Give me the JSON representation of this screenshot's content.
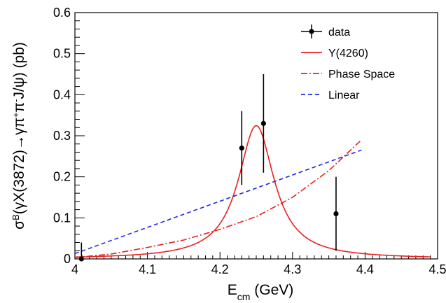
{
  "chart_data": {
    "type": "scatter",
    "xlim": [
      4.0,
      4.5
    ],
    "ylim": [
      0.0,
      0.6
    ],
    "xticks": [
      "4",
      "4.1",
      "4.2",
      "4.3",
      "4.4",
      "4.5"
    ],
    "yticks": [
      "0",
      "0.1",
      "0.2",
      "0.3",
      "0.4",
      "0.5",
      "0.6"
    ],
    "xlabel": "E_cm (GeV)",
    "xlabel_main": "E",
    "xlabel_sub": "cm",
    "xlabel_rest": " (GeV)",
    "ylabel": "σ^B(γX(3872)→γπ⁺π⁻J/ψ) (pb)",
    "ylabel_a": "σ",
    "ylabel_sup": "B",
    "ylabel_b": "(γX(3872)→γπ",
    "ylabel_plus": "+",
    "ylabel_c": "π",
    "ylabel_minus": "-",
    "ylabel_d": "J/ψ) (pb)",
    "legend_position": "top-right",
    "grid": false,
    "data_points": [
      {
        "x": 4.009,
        "y": 0.0,
        "err_low": 0.0,
        "err_high": 0.04
      },
      {
        "x": 4.23,
        "y": 0.27,
        "err_low": 0.09,
        "err_high": 0.09
      },
      {
        "x": 4.26,
        "y": 0.33,
        "err_low": 0.12,
        "err_high": 0.12
      },
      {
        "x": 4.36,
        "y": 0.11,
        "err_low": 0.09,
        "err_high": 0.09
      }
    ],
    "series": [
      {
        "name": "data",
        "kind": "points",
        "color": "#000000"
      },
      {
        "name": "Y(4260)",
        "kind": "breit-wigner",
        "color": "#e8211f",
        "style": "solid",
        "x_range": [
          4.0,
          4.49
        ],
        "peak_x": 4.25,
        "peak_y": 0.325,
        "width": 0.06,
        "tail_y": 0.013
      },
      {
        "name": "Phase Space",
        "kind": "curve",
        "color": "#e8211f",
        "style": "dash-dot",
        "x": [
          4.0,
          4.05,
          4.1,
          4.15,
          4.2,
          4.25,
          4.3,
          4.35,
          4.395
        ],
        "y": [
          0.003,
          0.012,
          0.028,
          0.046,
          0.072,
          0.103,
          0.15,
          0.215,
          0.29
        ]
      },
      {
        "name": "Linear",
        "kind": "line",
        "color": "#1f2be3",
        "style": "dashed",
        "x": [
          4.0,
          4.395
        ],
        "y": [
          0.013,
          0.265
        ]
      }
    ]
  }
}
